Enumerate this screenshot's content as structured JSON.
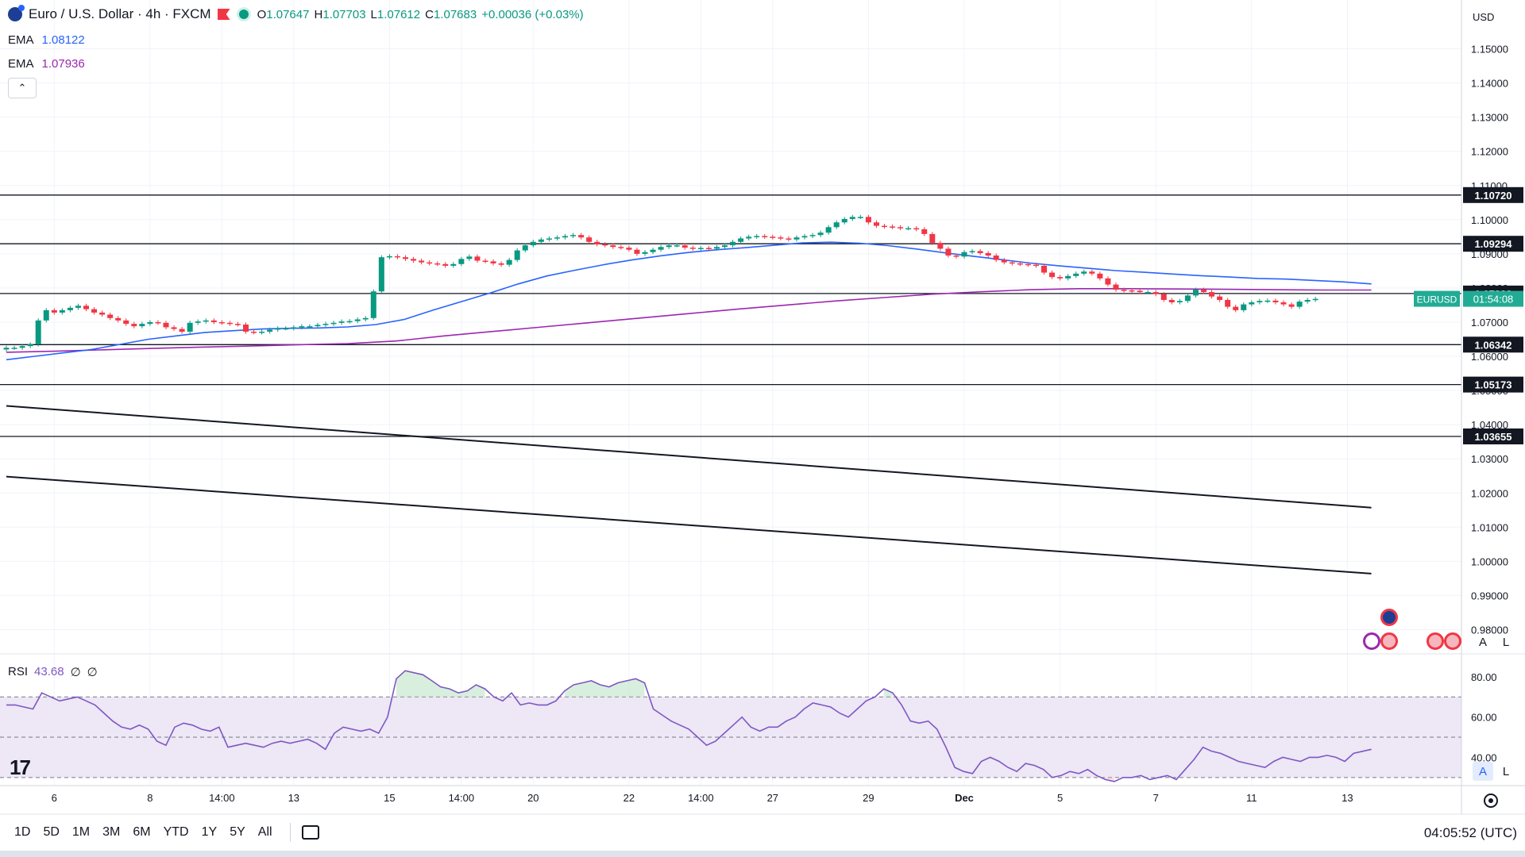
{
  "header": {
    "symbol_title": "Euro / U.S. Dollar · 4h · FXCM",
    "ohlc": {
      "o_label": "O",
      "o": "1.07647",
      "h_label": "H",
      "h": "1.07703",
      "l_label": "L",
      "l": "1.07612",
      "c_label": "C",
      "c": "1.07683",
      "change": "+0.00036 (+0.03%)"
    },
    "ema1_label": "EMA",
    "ema1_value": "1.08122",
    "ema1_color": "#2962ff",
    "ema2_label": "EMA",
    "ema2_value": "1.07936",
    "ema2_color": "#9c27b0",
    "collapse_icon": "chevron-up-icon"
  },
  "currency": "USD",
  "rsi": {
    "label": "RSI",
    "value": "43.68",
    "extra1": "∅",
    "extra2": "∅"
  },
  "price_tag": {
    "symbol": "EURUSD",
    "countdown": "01:54:08",
    "color": "#22ab94"
  },
  "timeframes": [
    "1D",
    "5D",
    "1M",
    "3M",
    "6M",
    "YTD",
    "1Y",
    "5Y",
    "All"
  ],
  "clock": "04:05:52 (UTC)",
  "scale_buttons": {
    "auto": "A",
    "log": "L"
  },
  "colors": {
    "up": "#089981",
    "down": "#f23645",
    "ema_fast": "#2962ff",
    "ema_slow": "#9c27b0",
    "rsi_line": "#7e57c2",
    "rsi_band": "#ede7f6"
  },
  "chart_data": [
    {
      "type": "candlestick",
      "title": "Euro / U.S. Dollar · 4h · FXCM",
      "ylim": [
        0.975,
        1.155
      ],
      "y_ticks": [
        0.98,
        0.99,
        1.0,
        1.01,
        1.02,
        1.03,
        1.04,
        1.05,
        1.06,
        1.07,
        1.08,
        1.09,
        1.1,
        1.11,
        1.12,
        1.13,
        1.14,
        1.15
      ],
      "y_tick_labels": [
        "0.98000",
        "0.99000",
        "1.00000",
        "1.01000",
        "1.02000",
        "1.03000",
        "1.04000",
        "1.05000",
        "1.06000",
        "1.07000",
        "1.08000",
        "1.09000",
        "1.10000",
        "1.11000",
        "1.12000",
        "1.13000",
        "1.14000",
        "1.15000"
      ],
      "x_ticks": [
        {
          "label": "6",
          "bar": 6
        },
        {
          "label": "8",
          "bar": 18
        },
        {
          "label": "14:00",
          "bar": 27
        },
        {
          "label": "13",
          "bar": 36
        },
        {
          "label": "15",
          "bar": 48
        },
        {
          "label": "14:00",
          "bar": 57
        },
        {
          "label": "20",
          "bar": 66
        },
        {
          "label": "22",
          "bar": 78
        },
        {
          "label": "14:00",
          "bar": 87
        },
        {
          "label": "27",
          "bar": 96
        },
        {
          "label": "29",
          "bar": 108
        },
        {
          "label": "Dec",
          "bar": 120
        },
        {
          "label": "5",
          "bar": 132
        },
        {
          "label": "7",
          "bar": 144
        },
        {
          "label": "11",
          "bar": 156
        },
        {
          "label": "13",
          "bar": 168
        }
      ],
      "closes": [
        1.0625,
        1.0625,
        1.063,
        1.0635,
        1.0705,
        1.0735,
        1.0728,
        1.0735,
        1.0742,
        1.0748,
        1.0738,
        1.0728,
        1.0722,
        1.0712,
        1.0705,
        1.0695,
        1.0688,
        1.0695,
        1.07,
        1.0698,
        1.0685,
        1.068,
        1.0672,
        1.0698,
        1.0702,
        1.0705,
        1.07,
        1.0698,
        1.0695,
        1.0693,
        1.0672,
        1.067,
        1.0672,
        1.0678,
        1.0682,
        1.0682,
        1.0685,
        1.0688,
        1.0688,
        1.0692,
        1.0695,
        1.0698,
        1.0702,
        1.0703,
        1.0708,
        1.0712,
        1.079,
        1.089,
        1.0893,
        1.089,
        1.0885,
        1.088,
        1.0875,
        1.0872,
        1.087,
        1.0865,
        1.087,
        1.0885,
        1.0892,
        1.088,
        1.0878,
        1.0872,
        1.0868,
        1.0882,
        1.091,
        1.0925,
        1.0935,
        1.0942,
        1.0945,
        1.0948,
        1.0952,
        1.0955,
        1.0948,
        1.0935,
        1.0928,
        1.0925,
        1.092,
        1.0918,
        1.0912,
        1.09,
        1.0905,
        1.0912,
        1.092,
        1.0925,
        1.0925,
        1.0918,
        1.0915,
        1.0917,
        1.0915,
        1.092,
        1.0925,
        1.0935,
        1.0945,
        1.095,
        1.0952,
        1.095,
        1.0948,
        1.0945,
        1.0942,
        1.0948,
        1.0952,
        1.0955,
        1.0962,
        1.0978,
        1.0992,
        1.1002,
        1.1008,
        1.1008,
        1.0992,
        1.0982,
        1.098,
        1.0978,
        1.0975,
        1.0975,
        1.0972,
        1.0958,
        1.0932,
        1.0915,
        1.0895,
        1.0892,
        1.0905,
        1.0908,
        1.0902,
        1.0895,
        1.0882,
        1.0875,
        1.0872,
        1.087,
        1.0868,
        1.0865,
        1.0845,
        1.0832,
        1.0828,
        1.0835,
        1.0842,
        1.0848,
        1.0842,
        1.0828,
        1.081,
        1.0795,
        1.0793,
        1.0792,
        1.0788,
        1.0788,
        1.0782,
        1.0765,
        1.0758,
        1.0762,
        1.0778,
        1.0795,
        1.0788,
        1.0775,
        1.0765,
        1.0745,
        1.0735,
        1.0752,
        1.0758,
        1.0762,
        1.0763,
        1.0758,
        1.0752,
        1.0745,
        1.076,
        1.0765,
        1.0768
      ],
      "ema_fast": [
        1.059,
        1.06,
        1.061,
        1.062,
        1.0635,
        1.065,
        1.066,
        1.067,
        1.0675,
        1.068,
        1.0682,
        1.0683,
        1.0686,
        1.0693,
        1.0708,
        1.0735,
        1.076,
        1.0785,
        1.0812,
        1.0835,
        1.0852,
        1.0868,
        1.0882,
        1.0894,
        1.0904,
        1.0912,
        1.0918,
        1.0925,
        1.0932,
        1.0934,
        1.0931,
        1.0924,
        1.0914,
        1.0903,
        1.0893,
        1.0883,
        1.0873,
        1.0865,
        1.0858,
        1.0851,
        1.0846,
        1.0841,
        1.0836,
        1.0832,
        1.0828,
        1.0826,
        1.0822,
        1.0818,
        1.0812
      ],
      "ema_slow": [
        1.0612,
        1.0615,
        1.0619,
        1.0623,
        1.0627,
        1.063,
        1.0634,
        1.0637,
        1.0645,
        1.066,
        1.0673,
        1.0686,
        1.0699,
        1.0712,
        1.0725,
        1.0738,
        1.075,
        1.0762,
        1.0772,
        1.0782,
        1.0789,
        1.0795,
        1.0798,
        1.0798,
        1.0797,
        1.0796,
        1.0795,
        1.0794,
        1.0794
      ],
      "horizontal_levels": [
        "1.10720",
        "1.09294",
        "1.07838",
        "1.06342",
        "1.05173",
        "1.03655"
      ],
      "trendlines": [
        {
          "x0_bar": 0,
          "y0": 1.0455,
          "x1_bar": 171,
          "y1": 1.0157
        },
        {
          "x0_bar": 0,
          "y0": 1.0248,
          "x1_bar": 171,
          "y1": 0.9964
        }
      ],
      "current_price": 1.07683
    },
    {
      "type": "line",
      "title": "RSI",
      "ylim": [
        26,
        89
      ],
      "y_ticks": [
        40,
        60,
        80
      ],
      "y_tick_labels": [
        "40.00",
        "60.00",
        "80.00"
      ],
      "bands": [
        30,
        50,
        70
      ],
      "values": [
        66,
        66,
        65,
        64,
        72,
        70,
        68,
        69,
        70,
        68,
        66,
        62,
        58,
        55,
        54,
        56,
        54,
        48,
        46,
        55,
        57,
        56,
        54,
        53,
        55,
        45,
        46,
        47,
        46,
        45,
        47,
        48,
        47,
        48,
        49,
        47,
        44,
        52,
        55,
        54,
        53,
        54,
        52,
        60,
        79,
        83,
        82,
        81,
        78,
        75,
        74,
        72,
        73,
        76,
        74,
        70,
        68,
        72,
        66,
        67,
        66,
        66,
        68,
        73,
        76,
        77,
        78,
        76,
        75,
        77,
        78,
        79,
        77,
        64,
        61,
        58,
        56,
        54,
        50,
        46,
        48,
        52,
        56,
        60,
        55,
        53,
        55,
        55,
        58,
        60,
        64,
        67,
        66,
        65,
        62,
        60,
        64,
        68,
        70,
        74,
        72,
        66,
        58,
        57,
        58,
        54,
        45,
        35,
        33,
        32,
        38,
        40,
        38,
        35,
        33,
        37,
        36,
        34,
        30,
        31,
        33,
        32,
        34,
        31,
        29,
        28,
        30,
        30,
        31,
        29,
        30,
        31,
        29,
        34,
        39,
        45,
        43,
        42,
        40,
        38,
        37,
        36,
        35,
        38,
        40,
        39,
        38,
        40,
        40,
        41,
        40,
        38,
        42,
        43,
        44
      ]
    }
  ]
}
